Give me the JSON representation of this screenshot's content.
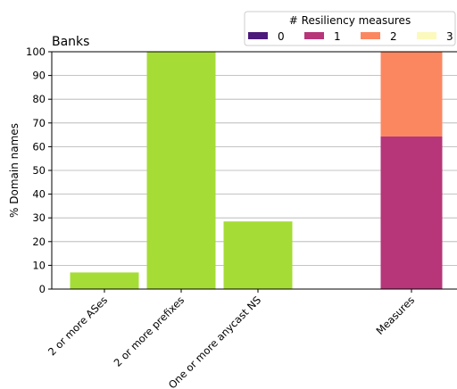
{
  "chart_data": {
    "type": "bar",
    "title": "Banks",
    "ylabel": "% Domain names",
    "xlabel": "",
    "ylim": [
      0,
      100
    ],
    "yticks": [
      0,
      10,
      20,
      30,
      40,
      50,
      60,
      70,
      80,
      90,
      100
    ],
    "grid": "horizontal",
    "categories": [
      "2 or more ASes",
      "2 or more prefixes",
      "One or more anycast NS"
    ],
    "values": [
      7,
      100,
      28.5
    ],
    "bar_color": "#a6dc36",
    "stacked_bar": {
      "category": "Measures",
      "segments": [
        {
          "name": "0",
          "value": 0,
          "color": "#4c1a7a"
        },
        {
          "name": "1",
          "value": 64.3,
          "color": "#b63679"
        },
        {
          "name": "2",
          "value": 35.7,
          "color": "#fb8761"
        },
        {
          "name": "3",
          "value": 0,
          "color": "#fcf9bd"
        }
      ]
    },
    "legend": {
      "title": "# Resiliency measures",
      "placement": "top-right",
      "entries": [
        {
          "label": "0",
          "color": "#4c1a7a"
        },
        {
          "label": "1",
          "color": "#b63679"
        },
        {
          "label": "2",
          "color": "#fb8761"
        },
        {
          "label": "3",
          "color": "#fcf9bd"
        }
      ]
    }
  }
}
